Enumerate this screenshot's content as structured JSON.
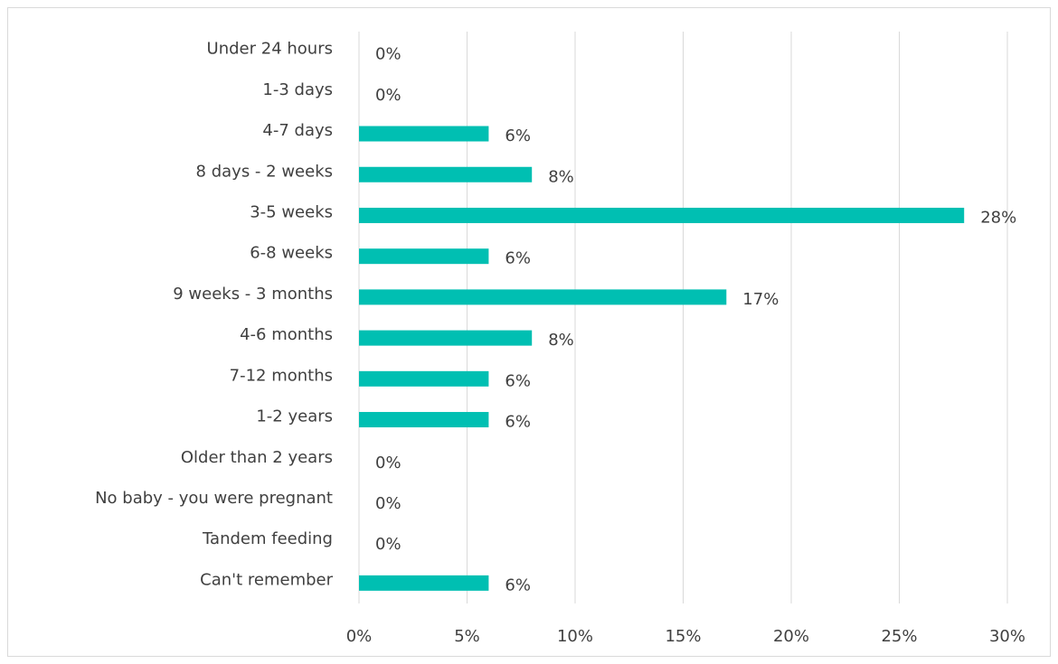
{
  "chart_data": {
    "type": "hbar",
    "categories": [
      "Under 24 hours",
      "1-3 days",
      "4-7 days",
      "8 days - 2 weeks",
      "3-5 weeks",
      "6-8 weeks",
      "9 weeks - 3 months",
      "4-6 months",
      "7-12 months",
      "1-2 years",
      "Older than 2 years",
      "No baby - you were pregnant",
      "Tandem feeding",
      "Can't remember"
    ],
    "values": [
      0,
      0,
      6,
      8,
      28,
      6,
      17,
      8,
      6,
      6,
      0,
      0,
      0,
      6
    ],
    "value_labels": [
      "0%",
      "0%",
      "6%",
      "8%",
      "28%",
      "6%",
      "17%",
      "8%",
      "6%",
      "6%",
      "0%",
      "0%",
      "0%",
      "6%"
    ],
    "color": "#00bfb2",
    "xlim": [
      0,
      30
    ],
    "xticks": [
      {
        "value": 0,
        "label": "0%"
      },
      {
        "value": 5,
        "label": "5%"
      },
      {
        "value": 10,
        "label": "10%"
      },
      {
        "value": 15,
        "label": "15%"
      },
      {
        "value": 20,
        "label": "20%"
      },
      {
        "value": 25,
        "label": "25%"
      },
      {
        "value": 30,
        "label": "30%"
      }
    ],
    "grid": true
  }
}
